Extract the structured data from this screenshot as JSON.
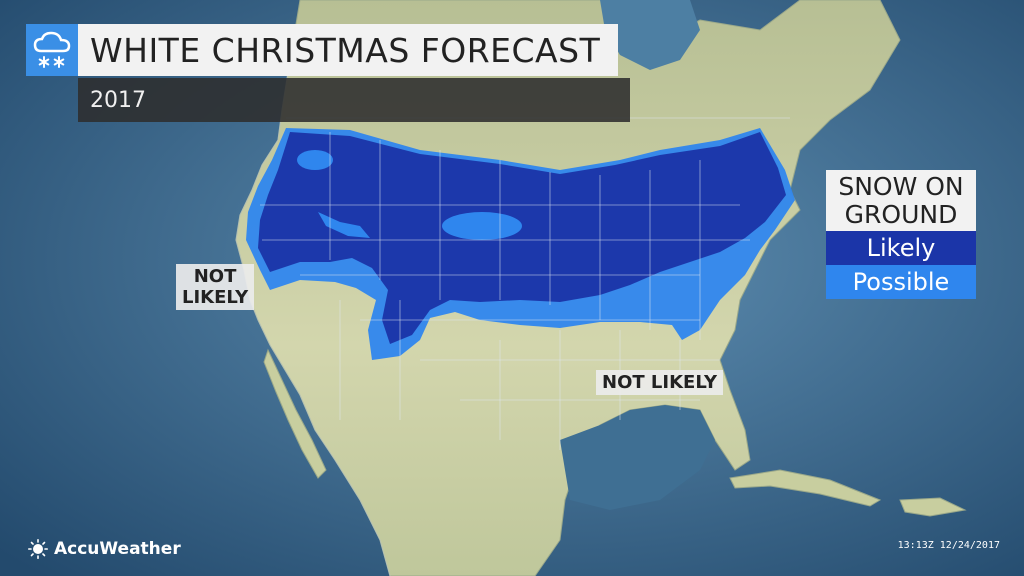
{
  "header": {
    "title": "WHITE CHRISTMAS FORECAST",
    "subtitle": "2017",
    "icon": "cloud-snow-icon"
  },
  "legend": {
    "title_line1": "SNOW ON",
    "title_line2": "GROUND",
    "items": [
      {
        "label": "Likely",
        "color": "#1b35a8"
      },
      {
        "label": "Possible",
        "color": "#2f86ee"
      }
    ]
  },
  "map_labels": {
    "west_line1": "NOT",
    "west_line2": "LIKELY",
    "southeast": "NOT LIKELY"
  },
  "footer": {
    "brand": "AccuWeather",
    "brand_icon": "sun-logo-icon",
    "timestamp": "13:13Z 12/24/2017"
  },
  "colors": {
    "ocean": "#2e5b7f",
    "land": "#c9cfa3",
    "likely": "#1b35a8",
    "possible": "#2f86ee"
  }
}
